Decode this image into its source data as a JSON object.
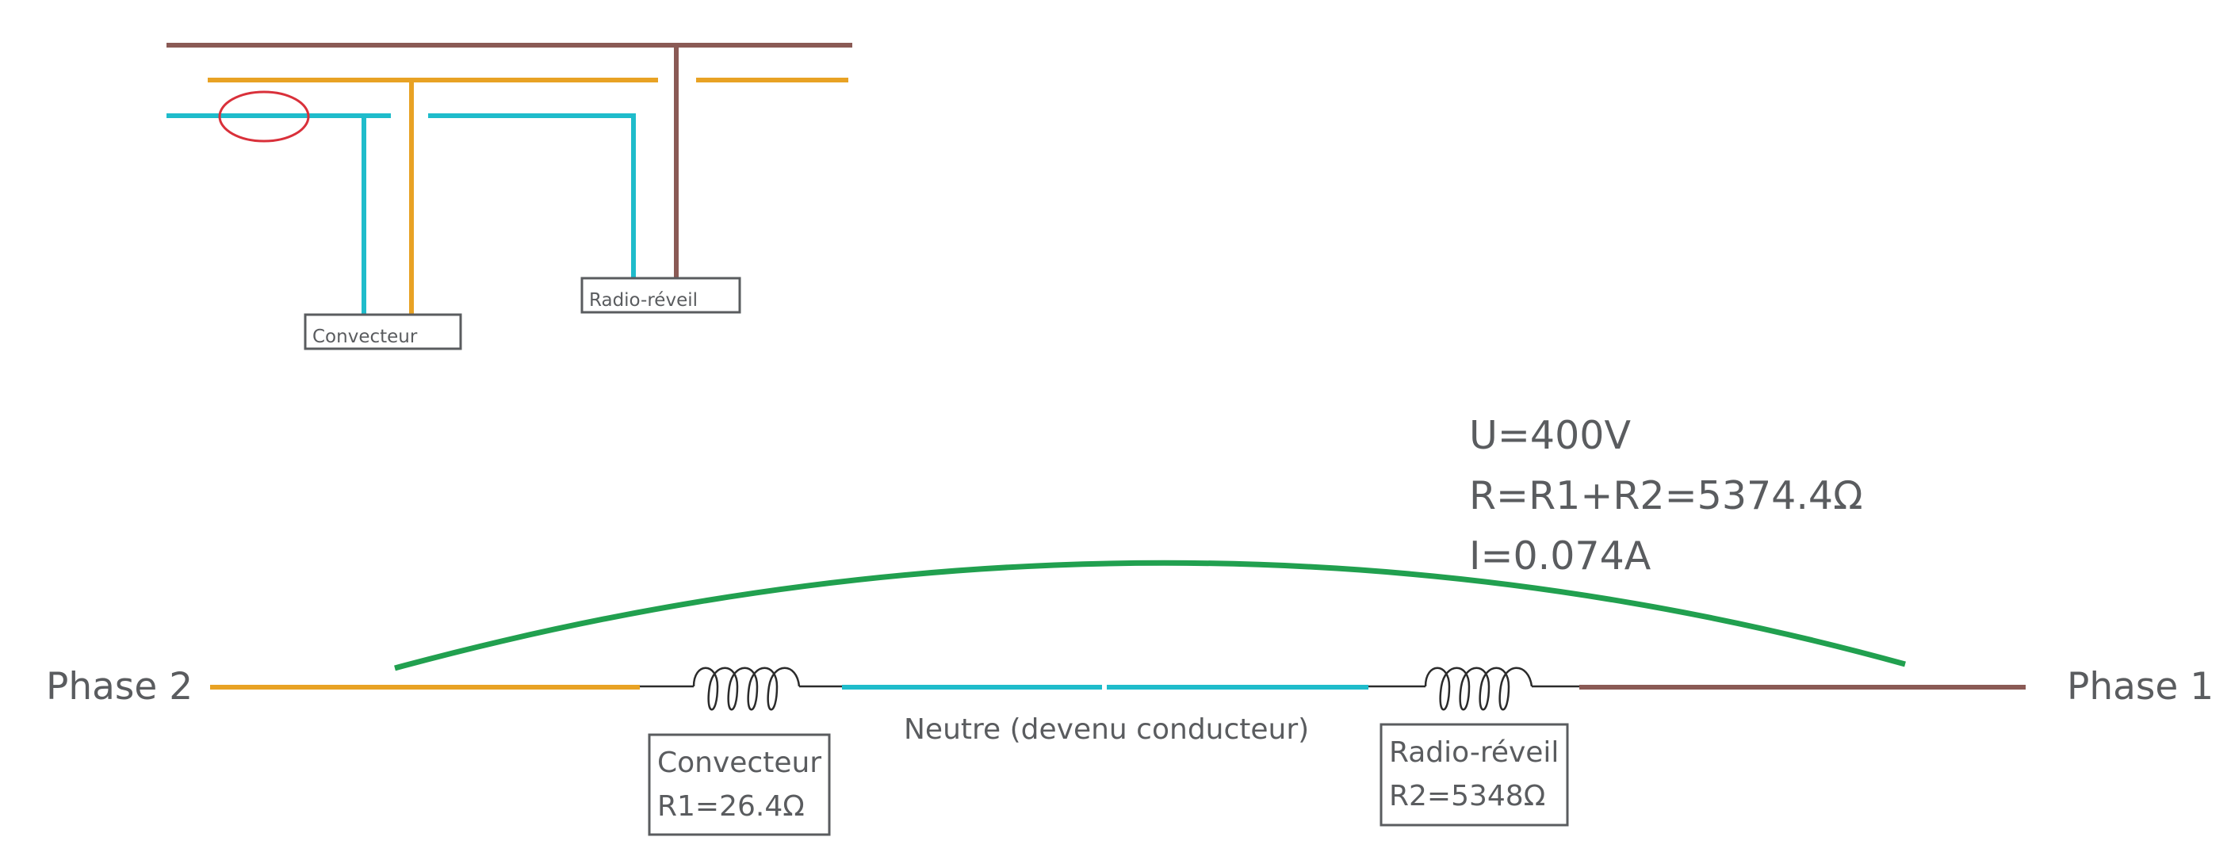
{
  "colors": {
    "phase1": "#8a5a55",
    "phase2": "#e8a224",
    "neutral": "#1fbccb",
    "arc": "#21a04f",
    "leak_mark": "#d9303a",
    "text": "#5a5c5f"
  },
  "top_diagram": {
    "convecteur_label": "Convecteur",
    "radio_label": "Radio-réveil"
  },
  "circuit": {
    "phase2_label": "Phase 2",
    "phase1_label": "Phase 1",
    "neutre_label": "Neutre (devenu conducteur)",
    "convecteur": {
      "name": "Convecteur",
      "value": "R1=26.4Ω"
    },
    "radio": {
      "name": "Radio-réveil",
      "value": "R2=5348Ω"
    }
  },
  "formula": {
    "voltage": "U=400V",
    "resistance": "R=R1+R2=5374.4Ω",
    "current": "I=0.074A"
  }
}
